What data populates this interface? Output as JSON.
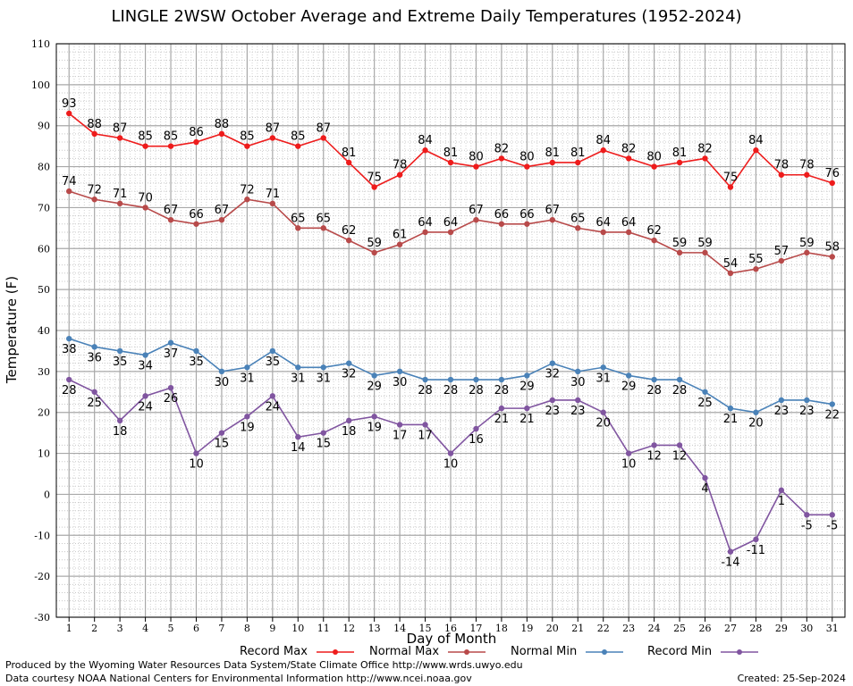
{
  "chart_data": {
    "type": "line",
    "title": "LINGLE 2WSW October Average and Extreme Daily Temperatures (1952-2024)",
    "xlabel": "Day of Month",
    "ylabel": "Temperature (F)",
    "ylim": [
      -30,
      110
    ],
    "yticks": [
      -30,
      -20,
      -10,
      0,
      10,
      20,
      30,
      40,
      50,
      60,
      70,
      80,
      90,
      100,
      110
    ],
    "x": [
      1,
      2,
      3,
      4,
      5,
      6,
      7,
      8,
      9,
      10,
      11,
      12,
      13,
      14,
      15,
      16,
      17,
      18,
      19,
      20,
      21,
      22,
      23,
      24,
      25,
      26,
      27,
      28,
      29,
      30,
      31
    ],
    "grid": true,
    "legend_position": "bottom",
    "series": [
      {
        "name": "Record Max",
        "color": "#ee1c1c",
        "label_pos": "above",
        "values": [
          93,
          88,
          87,
          85,
          85,
          86,
          88,
          85,
          87,
          85,
          87,
          81,
          75,
          78,
          84,
          81,
          80,
          82,
          80,
          81,
          81,
          84,
          82,
          80,
          81,
          82,
          75,
          84,
          78,
          78,
          76
        ]
      },
      {
        "name": "Normal Max",
        "color": "#b84a4a",
        "label_pos": "above",
        "values": [
          74,
          72,
          71,
          70,
          67,
          66,
          67,
          72,
          71,
          65,
          65,
          62,
          59,
          61,
          64,
          64,
          67,
          66,
          66,
          67,
          65,
          64,
          64,
          62,
          59,
          59,
          54,
          55,
          57,
          59,
          58
        ]
      },
      {
        "name": "Normal Min",
        "color": "#4a82b8",
        "label_pos": "below",
        "values": [
          38,
          36,
          35,
          34,
          37,
          35,
          30,
          31,
          35,
          31,
          31,
          32,
          29,
          30,
          28,
          28,
          28,
          28,
          29,
          32,
          30,
          31,
          29,
          28,
          28,
          25,
          21,
          20,
          23,
          23,
          22
        ]
      },
      {
        "name": "Record Min",
        "color": "#8055a0",
        "label_pos": "below",
        "values": [
          28,
          25,
          18,
          24,
          26,
          10,
          15,
          19,
          24,
          14,
          15,
          18,
          19,
          17,
          17,
          10,
          16,
          21,
          21,
          23,
          23,
          20,
          10,
          12,
          12,
          4,
          -14,
          -11,
          1,
          -5,
          -5
        ]
      }
    ]
  },
  "footer": {
    "produced_by": "Produced by the Wyoming Water Resources Data System/State Climate Office http://www.wrds.uwyo.edu",
    "data_courtesy": "Data courtesy NOAA National Centers for Environmental Information http://www.ncei.noaa.gov",
    "created": "Created:  25-Sep-2024"
  }
}
